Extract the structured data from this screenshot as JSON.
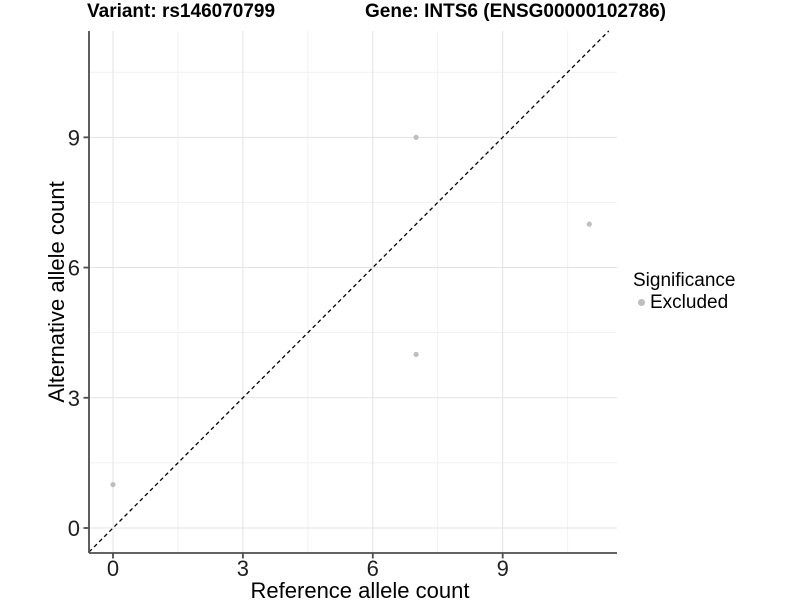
{
  "chart_data": {
    "type": "scatter",
    "titles": {
      "left": "Variant: rs146070799",
      "right": "Gene: INTS6 (ENSG00000102786)"
    },
    "xlabel": "Reference allele count",
    "ylabel": "Alternative allele count",
    "xlim": [
      -0.554,
      11.64
    ],
    "ylim": [
      -0.576,
      11.45
    ],
    "xticks": [
      0,
      3,
      6,
      9
    ],
    "yticks": [
      0,
      3,
      6,
      9
    ],
    "xminor": [
      1.5,
      4.5,
      7.5,
      10.5
    ],
    "yminor": [
      1.5,
      4.5,
      7.5,
      10.5
    ],
    "grid": "major+minor",
    "identity_line": {
      "type": "dashed",
      "equation": "y = x"
    },
    "series": [
      {
        "name": "Excluded",
        "color": "#bebebe",
        "points": [
          {
            "x": 0,
            "y": 1
          },
          {
            "x": 7,
            "y": 4
          },
          {
            "x": 7,
            "y": 9
          },
          {
            "x": 11,
            "y": 7
          }
        ]
      }
    ],
    "legend": {
      "title": "Significance",
      "position": "right",
      "items": [
        {
          "label": "Excluded",
          "color": "#bebebe"
        }
      ]
    },
    "colors": {
      "background": "#ffffff",
      "point": "#bebebe",
      "grid_major": "#e3e3e3",
      "grid_minor": "#f1f1f1",
      "axis_line": "#4d4d4d",
      "tick_label": "#1f1f1f",
      "axis_title": "#000000",
      "identity_line": "#000000"
    }
  }
}
